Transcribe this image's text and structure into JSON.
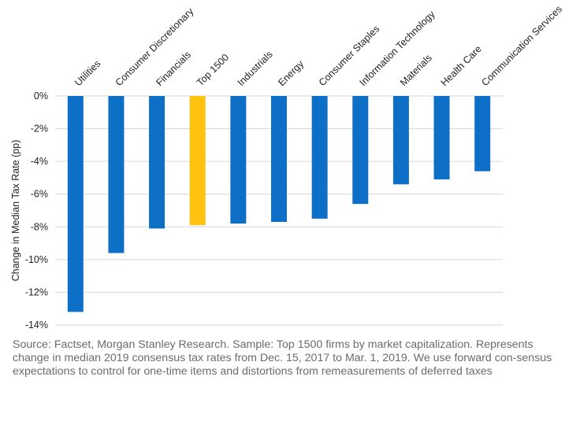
{
  "colors": {
    "bar": "#0e6fc6",
    "highlight": "#ffc20e",
    "grid": "#d6d6d6",
    "text": "#222222",
    "source": "#6b6b6b"
  },
  "chart_data": {
    "type": "bar",
    "title": "",
    "xlabel": "",
    "ylabel": "Change in Median Tax Rate (pp)",
    "ylim": [
      -14,
      0
    ],
    "yticks": [
      0,
      -2,
      -4,
      -6,
      -8,
      -10,
      -12,
      -14
    ],
    "tick_suffix": "%",
    "grid": true,
    "category_labels_position": "top, rotated",
    "categories": [
      "Utilities",
      "Consumer Discretionary",
      "Financials",
      "Top 1500",
      "Industrials",
      "Energy",
      "Consumer Staples",
      "Information Technology",
      "Materials",
      "Health Care",
      "Communication Services"
    ],
    "values": [
      -13.2,
      -9.6,
      -8.1,
      -7.9,
      -7.8,
      -7.7,
      -7.5,
      -6.6,
      -5.4,
      -5.1,
      -4.6
    ],
    "highlight_category": "Top 1500"
  },
  "source_note": "Source: Factset, Morgan Stanley Research. Sample: Top 1500 firms by market capitalization. Represents change in median 2019 consensus tax rates from Dec. 15, 2017 to Mar. 1, 2019. We use forward con-sensus expectations to control for one-time items and distortions from remeasurements of deferred taxes"
}
